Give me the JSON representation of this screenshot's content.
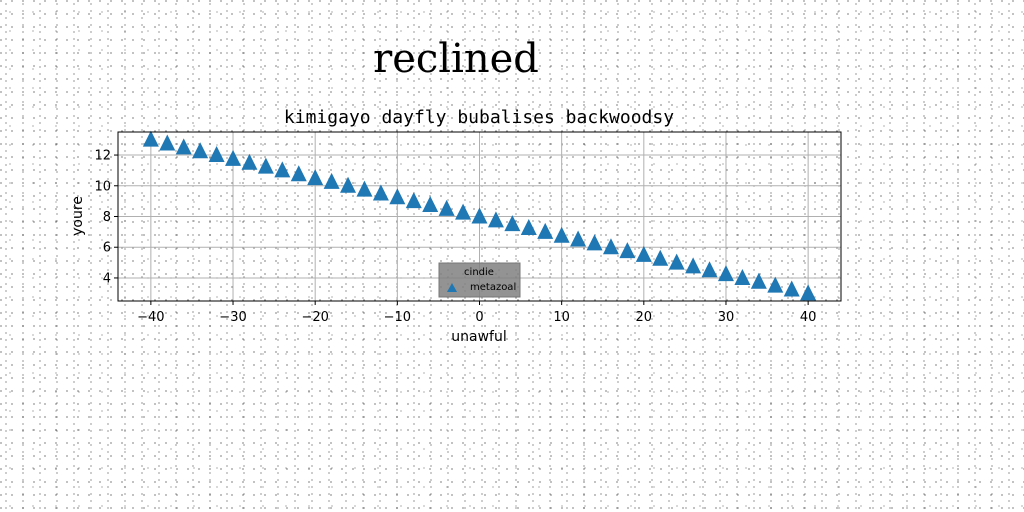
{
  "figure": {
    "suptitle": "reclined"
  },
  "chart_data": {
    "type": "scatter",
    "title": "kimigayo dayfly bubalises backwoodsy",
    "xlabel": "unawful",
    "ylabel": "youre",
    "xlim": [
      -44,
      44
    ],
    "ylim": [
      2.5,
      13.5
    ],
    "xticks": [
      -40,
      -30,
      -20,
      -10,
      0,
      10,
      20,
      30,
      40
    ],
    "yticks": [
      4,
      6,
      8,
      10,
      12
    ],
    "xtick_labels": [
      "−40",
      "−30",
      "−20",
      "−10",
      "0",
      "10",
      "20",
      "30",
      "40"
    ],
    "ytick_labels": [
      "4",
      "6",
      "8",
      "10",
      "12"
    ],
    "grid": true,
    "legend": {
      "title": "cindie",
      "placement": "lower center"
    },
    "series": [
      {
        "name": "metazoal",
        "marker": "triangle",
        "color": "#1f77b4",
        "x": [
          -40,
          -38,
          -36,
          -34,
          -32,
          -30,
          -28,
          -26,
          -24,
          -22,
          -20,
          -18,
          -16,
          -14,
          -12,
          -10,
          -8,
          -6,
          -4,
          -2,
          0,
          2,
          4,
          6,
          8,
          10,
          12,
          14,
          16,
          18,
          20,
          22,
          24,
          26,
          28,
          30,
          32,
          34,
          36,
          38,
          40
        ],
        "y": [
          13.0,
          12.75,
          12.5,
          12.25,
          12.0,
          11.75,
          11.5,
          11.25,
          11.0,
          10.75,
          10.5,
          10.25,
          10.0,
          9.75,
          9.5,
          9.25,
          9.0,
          8.75,
          8.5,
          8.25,
          8.0,
          7.75,
          7.5,
          7.25,
          7.0,
          6.75,
          6.5,
          6.25,
          6.0,
          5.75,
          5.5,
          5.25,
          5.0,
          4.75,
          4.5,
          4.25,
          4.0,
          3.75,
          3.5,
          3.25,
          3.0
        ]
      }
    ]
  }
}
